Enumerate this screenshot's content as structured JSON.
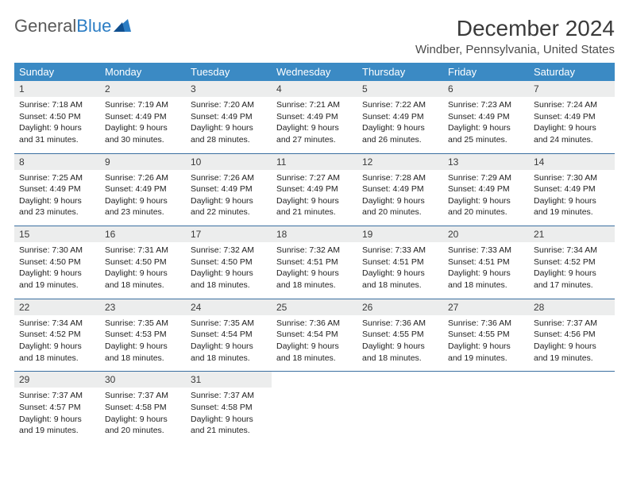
{
  "logo": {
    "text1": "General",
    "text2": "Blue"
  },
  "title": "December 2024",
  "subtitle": "Windber, Pennsylvania, United States",
  "colors": {
    "header_bg": "#3b8ac4",
    "header_fg": "#ffffff",
    "daynum_bg": "#eceded",
    "row_border": "#3b6fa0",
    "logo_gray": "#5a5a5a",
    "logo_blue": "#2b7dc4"
  },
  "weekdays": [
    "Sunday",
    "Monday",
    "Tuesday",
    "Wednesday",
    "Thursday",
    "Friday",
    "Saturday"
  ],
  "weeks": [
    [
      {
        "n": "1",
        "sr": "Sunrise: 7:18 AM",
        "ss": "Sunset: 4:50 PM",
        "d1": "Daylight: 9 hours",
        "d2": "and 31 minutes."
      },
      {
        "n": "2",
        "sr": "Sunrise: 7:19 AM",
        "ss": "Sunset: 4:49 PM",
        "d1": "Daylight: 9 hours",
        "d2": "and 30 minutes."
      },
      {
        "n": "3",
        "sr": "Sunrise: 7:20 AM",
        "ss": "Sunset: 4:49 PM",
        "d1": "Daylight: 9 hours",
        "d2": "and 28 minutes."
      },
      {
        "n": "4",
        "sr": "Sunrise: 7:21 AM",
        "ss": "Sunset: 4:49 PM",
        "d1": "Daylight: 9 hours",
        "d2": "and 27 minutes."
      },
      {
        "n": "5",
        "sr": "Sunrise: 7:22 AM",
        "ss": "Sunset: 4:49 PM",
        "d1": "Daylight: 9 hours",
        "d2": "and 26 minutes."
      },
      {
        "n": "6",
        "sr": "Sunrise: 7:23 AM",
        "ss": "Sunset: 4:49 PM",
        "d1": "Daylight: 9 hours",
        "d2": "and 25 minutes."
      },
      {
        "n": "7",
        "sr": "Sunrise: 7:24 AM",
        "ss": "Sunset: 4:49 PM",
        "d1": "Daylight: 9 hours",
        "d2": "and 24 minutes."
      }
    ],
    [
      {
        "n": "8",
        "sr": "Sunrise: 7:25 AM",
        "ss": "Sunset: 4:49 PM",
        "d1": "Daylight: 9 hours",
        "d2": "and 23 minutes."
      },
      {
        "n": "9",
        "sr": "Sunrise: 7:26 AM",
        "ss": "Sunset: 4:49 PM",
        "d1": "Daylight: 9 hours",
        "d2": "and 23 minutes."
      },
      {
        "n": "10",
        "sr": "Sunrise: 7:26 AM",
        "ss": "Sunset: 4:49 PM",
        "d1": "Daylight: 9 hours",
        "d2": "and 22 minutes."
      },
      {
        "n": "11",
        "sr": "Sunrise: 7:27 AM",
        "ss": "Sunset: 4:49 PM",
        "d1": "Daylight: 9 hours",
        "d2": "and 21 minutes."
      },
      {
        "n": "12",
        "sr": "Sunrise: 7:28 AM",
        "ss": "Sunset: 4:49 PM",
        "d1": "Daylight: 9 hours",
        "d2": "and 20 minutes."
      },
      {
        "n": "13",
        "sr": "Sunrise: 7:29 AM",
        "ss": "Sunset: 4:49 PM",
        "d1": "Daylight: 9 hours",
        "d2": "and 20 minutes."
      },
      {
        "n": "14",
        "sr": "Sunrise: 7:30 AM",
        "ss": "Sunset: 4:49 PM",
        "d1": "Daylight: 9 hours",
        "d2": "and 19 minutes."
      }
    ],
    [
      {
        "n": "15",
        "sr": "Sunrise: 7:30 AM",
        "ss": "Sunset: 4:50 PM",
        "d1": "Daylight: 9 hours",
        "d2": "and 19 minutes."
      },
      {
        "n": "16",
        "sr": "Sunrise: 7:31 AM",
        "ss": "Sunset: 4:50 PM",
        "d1": "Daylight: 9 hours",
        "d2": "and 18 minutes."
      },
      {
        "n": "17",
        "sr": "Sunrise: 7:32 AM",
        "ss": "Sunset: 4:50 PM",
        "d1": "Daylight: 9 hours",
        "d2": "and 18 minutes."
      },
      {
        "n": "18",
        "sr": "Sunrise: 7:32 AM",
        "ss": "Sunset: 4:51 PM",
        "d1": "Daylight: 9 hours",
        "d2": "and 18 minutes."
      },
      {
        "n": "19",
        "sr": "Sunrise: 7:33 AM",
        "ss": "Sunset: 4:51 PM",
        "d1": "Daylight: 9 hours",
        "d2": "and 18 minutes."
      },
      {
        "n": "20",
        "sr": "Sunrise: 7:33 AM",
        "ss": "Sunset: 4:51 PM",
        "d1": "Daylight: 9 hours",
        "d2": "and 18 minutes."
      },
      {
        "n": "21",
        "sr": "Sunrise: 7:34 AM",
        "ss": "Sunset: 4:52 PM",
        "d1": "Daylight: 9 hours",
        "d2": "and 17 minutes."
      }
    ],
    [
      {
        "n": "22",
        "sr": "Sunrise: 7:34 AM",
        "ss": "Sunset: 4:52 PM",
        "d1": "Daylight: 9 hours",
        "d2": "and 18 minutes."
      },
      {
        "n": "23",
        "sr": "Sunrise: 7:35 AM",
        "ss": "Sunset: 4:53 PM",
        "d1": "Daylight: 9 hours",
        "d2": "and 18 minutes."
      },
      {
        "n": "24",
        "sr": "Sunrise: 7:35 AM",
        "ss": "Sunset: 4:54 PM",
        "d1": "Daylight: 9 hours",
        "d2": "and 18 minutes."
      },
      {
        "n": "25",
        "sr": "Sunrise: 7:36 AM",
        "ss": "Sunset: 4:54 PM",
        "d1": "Daylight: 9 hours",
        "d2": "and 18 minutes."
      },
      {
        "n": "26",
        "sr": "Sunrise: 7:36 AM",
        "ss": "Sunset: 4:55 PM",
        "d1": "Daylight: 9 hours",
        "d2": "and 18 minutes."
      },
      {
        "n": "27",
        "sr": "Sunrise: 7:36 AM",
        "ss": "Sunset: 4:55 PM",
        "d1": "Daylight: 9 hours",
        "d2": "and 19 minutes."
      },
      {
        "n": "28",
        "sr": "Sunrise: 7:37 AM",
        "ss": "Sunset: 4:56 PM",
        "d1": "Daylight: 9 hours",
        "d2": "and 19 minutes."
      }
    ],
    [
      {
        "n": "29",
        "sr": "Sunrise: 7:37 AM",
        "ss": "Sunset: 4:57 PM",
        "d1": "Daylight: 9 hours",
        "d2": "and 19 minutes."
      },
      {
        "n": "30",
        "sr": "Sunrise: 7:37 AM",
        "ss": "Sunset: 4:58 PM",
        "d1": "Daylight: 9 hours",
        "d2": "and 20 minutes."
      },
      {
        "n": "31",
        "sr": "Sunrise: 7:37 AM",
        "ss": "Sunset: 4:58 PM",
        "d1": "Daylight: 9 hours",
        "d2": "and 21 minutes."
      },
      null,
      null,
      null,
      null
    ]
  ]
}
